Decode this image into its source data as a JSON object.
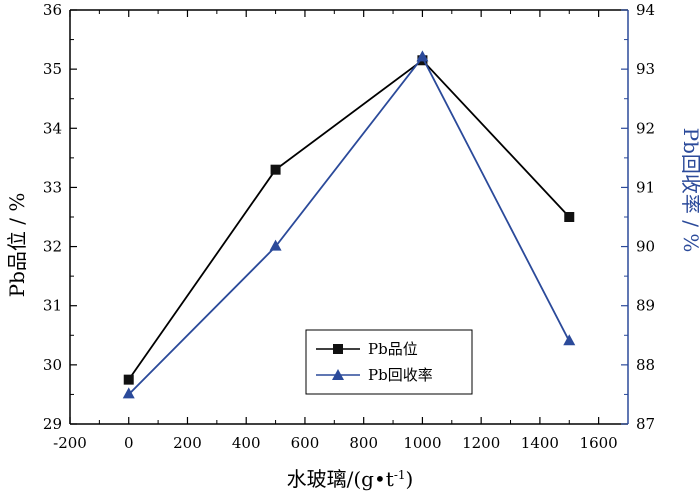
{
  "chart_data": {
    "type": "line",
    "x": [
      0,
      500,
      1000,
      1500
    ],
    "xlabel": "水玻璃/(g•t",
    "xlabel_sup": "-1",
    "xlabel_close": ")",
    "xlim": [
      -200,
      1700
    ],
    "xticks": [
      -200,
      0,
      200,
      400,
      600,
      800,
      1000,
      1200,
      1400,
      1600
    ],
    "ylabel_left": "Pb品位 / %",
    "ylim_left": [
      29,
      36
    ],
    "yticks_left": [
      29,
      30,
      31,
      32,
      33,
      34,
      35,
      36
    ],
    "ylabel_right": "Pb回收率 / %",
    "ylim_right": [
      87,
      94
    ],
    "yticks_right": [
      87,
      88,
      89,
      90,
      91,
      92,
      93,
      94
    ],
    "grid": false,
    "legend_position": "lower-center",
    "series": [
      {
        "name": "Pb品位",
        "axis": "left",
        "marker": "square",
        "color": "#000000",
        "values": [
          29.75,
          33.3,
          35.15,
          32.5
        ]
      },
      {
        "name": "Pb回收率",
        "axis": "right",
        "marker": "triangle",
        "color": "#2b4a9a",
        "values": [
          87.5,
          90.0,
          93.2,
          88.4
        ]
      }
    ]
  }
}
